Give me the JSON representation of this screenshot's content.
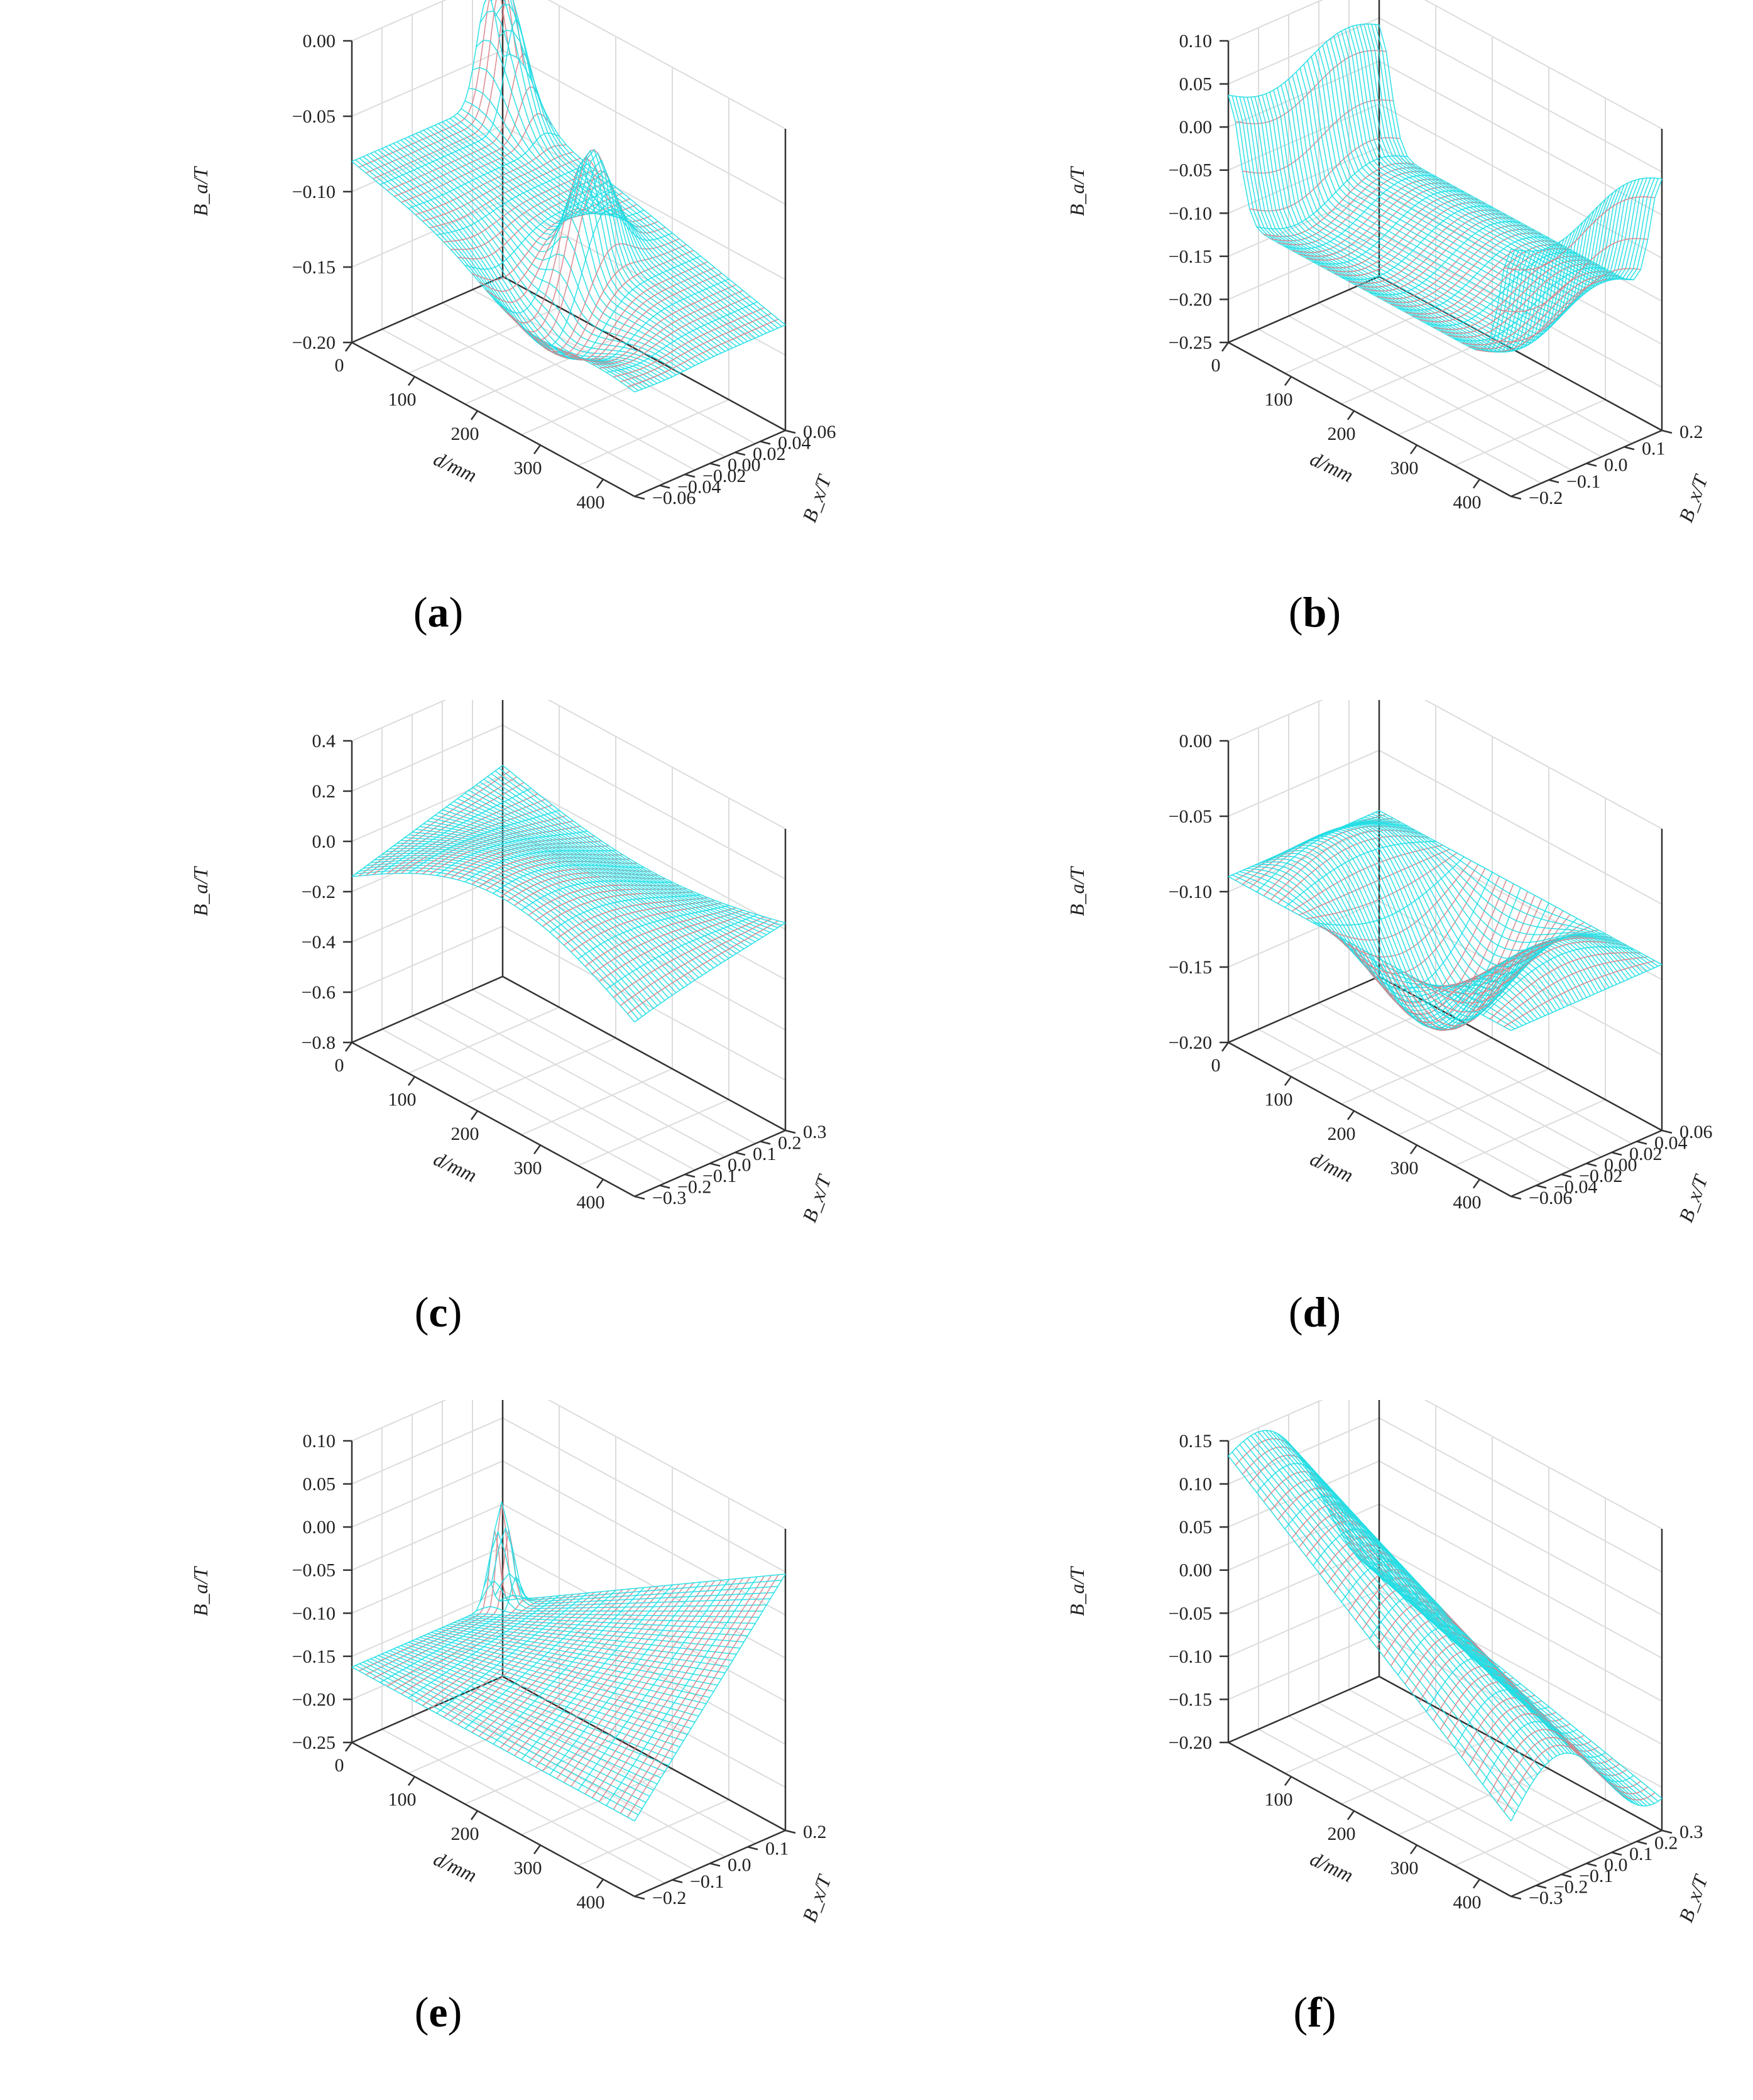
{
  "colors": {
    "mesh": "#22dfe6",
    "mesh_inner": "#d9838a",
    "axis": "#333333",
    "grid": "#dcdcdc"
  },
  "chart_data": [
    {
      "id": "a",
      "label": "a",
      "type": "surface3d",
      "xlabel": "d/mm",
      "ylabel": "B_x/T",
      "zlabel": "B_a/T",
      "xticks": [
        "0",
        "100",
        "200",
        "300",
        "400"
      ],
      "yticks": [
        "0.06",
        "0.04",
        "0.02",
        "0.00",
        "−0.02",
        "−0.04",
        "−0.06"
      ],
      "zticks": [
        "0.00",
        "−0.05",
        "−0.10",
        "−0.15",
        "−0.20"
      ],
      "xlim": [
        0,
        450
      ],
      "ylim": [
        -0.06,
        0.06
      ],
      "zlim": [
        -0.2,
        0.0
      ]
    },
    {
      "id": "b",
      "label": "b",
      "type": "surface3d",
      "xlabel": "d/mm",
      "ylabel": "B_x/T",
      "zlabel": "B_a/T",
      "xticks": [
        "0",
        "100",
        "200",
        "300",
        "400"
      ],
      "yticks": [
        "0.2",
        "0.1",
        "0.0",
        "−0.1",
        "−0.2"
      ],
      "zticks": [
        "0.10",
        "0.05",
        "0.00",
        "−0.05",
        "−0.10",
        "−0.15",
        "−0.20",
        "−0.25"
      ],
      "xlim": [
        0,
        450
      ],
      "ylim": [
        -0.2,
        0.2
      ],
      "zlim": [
        -0.25,
        0.1
      ]
    },
    {
      "id": "c",
      "label": "c",
      "type": "surface3d",
      "xlabel": "d/mm",
      "ylabel": "B_x/T",
      "zlabel": "B_a/T",
      "xticks": [
        "0",
        "100",
        "200",
        "300",
        "400"
      ],
      "yticks": [
        "0.3",
        "0.2",
        "0.1",
        "0.0",
        "−0.1",
        "−0.2",
        "−0.3"
      ],
      "zticks": [
        "0.4",
        "0.2",
        "0.0",
        "−0.2",
        "−0.4",
        "−0.6",
        "−0.8"
      ],
      "xlim": [
        0,
        450
      ],
      "ylim": [
        -0.3,
        0.3
      ],
      "zlim": [
        -0.8,
        0.4
      ]
    },
    {
      "id": "d",
      "label": "d",
      "type": "surface3d",
      "xlabel": "d/mm",
      "ylabel": "B_x/T",
      "zlabel": "B_a/T",
      "xticks": [
        "0",
        "100",
        "200",
        "300",
        "400"
      ],
      "yticks": [
        "0.06",
        "0.04",
        "0.02",
        "0.00",
        "−0.02",
        "−0.04",
        "−0.06"
      ],
      "zticks": [
        "0.00",
        "−0.05",
        "−0.10",
        "−0.15",
        "−0.20"
      ],
      "xlim": [
        0,
        450
      ],
      "ylim": [
        -0.06,
        0.06
      ],
      "zlim": [
        -0.2,
        0.0
      ]
    },
    {
      "id": "e",
      "label": "e",
      "type": "surface3d",
      "xlabel": "d/mm",
      "ylabel": "B_x/T",
      "zlabel": "B_a/T",
      "xticks": [
        "0",
        "100",
        "200",
        "300",
        "400"
      ],
      "yticks": [
        "0.2",
        "0.1",
        "0.0",
        "−0.1",
        "−0.2"
      ],
      "zticks": [
        "0.10",
        "0.05",
        "0.00",
        "−0.05",
        "−0.10",
        "−0.15",
        "−0.20",
        "−0.25"
      ],
      "xlim": [
        0,
        450
      ],
      "ylim": [
        -0.2,
        0.2
      ],
      "zlim": [
        -0.25,
        0.1
      ]
    },
    {
      "id": "f",
      "label": "f",
      "type": "surface3d",
      "xlabel": "d/mm",
      "ylabel": "B_x/T",
      "zlabel": "B_a/T",
      "xticks": [
        "100",
        "200",
        "300",
        "400"
      ],
      "yticks": [
        "0.3",
        "0.2",
        "0.1",
        "0.0",
        "−0.1",
        "−0.2",
        "−0.3"
      ],
      "zticks": [
        "0.15",
        "0.10",
        "0.05",
        "0.00",
        "−0.05",
        "−0.10",
        "−0.15",
        "−0.20"
      ],
      "xlim": [
        0,
        450
      ],
      "ylim": [
        -0.3,
        0.3
      ],
      "zlim": [
        -0.2,
        0.15
      ]
    }
  ]
}
